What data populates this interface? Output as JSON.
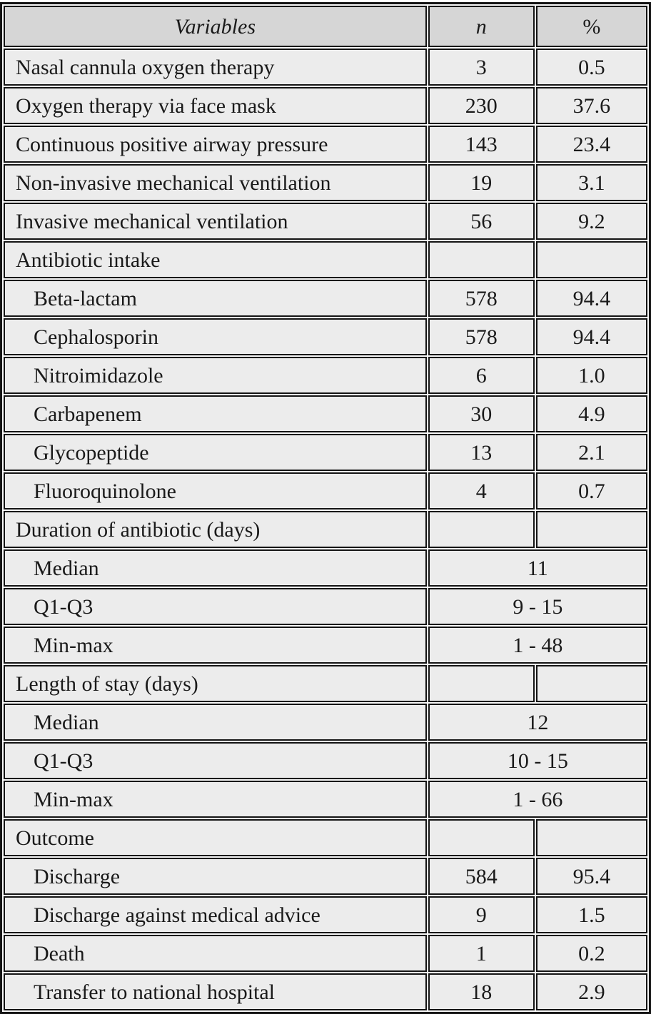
{
  "table": {
    "columns": {
      "variables": "Variables",
      "n": "n",
      "pct": "%"
    },
    "colors": {
      "header_bg": "#d6d6d6",
      "cell_bg": "#ececec",
      "border": "#141414",
      "text": "#1a1a1a"
    },
    "rows": [
      {
        "type": "data",
        "indent": false,
        "label": "Nasal cannula oxygen therapy",
        "n": "3",
        "pct": "0.5"
      },
      {
        "type": "data",
        "indent": false,
        "label": "Oxygen therapy via face mask",
        "n": "230",
        "pct": "37.6"
      },
      {
        "type": "data",
        "indent": false,
        "label": "Continuous positive airway pressure",
        "n": "143",
        "pct": "23.4"
      },
      {
        "type": "data",
        "indent": false,
        "label": "Non-invasive mechanical ventilation",
        "n": "19",
        "pct": "3.1"
      },
      {
        "type": "data",
        "indent": false,
        "label": "Invasive mechanical ventilation",
        "n": "56",
        "pct": "9.2"
      },
      {
        "type": "group",
        "indent": false,
        "label": "Antibiotic intake",
        "n": "",
        "pct": ""
      },
      {
        "type": "data",
        "indent": true,
        "label": "Beta-lactam",
        "n": "578",
        "pct": "94.4"
      },
      {
        "type": "data",
        "indent": true,
        "label": "Cephalosporin",
        "n": "578",
        "pct": "94.4"
      },
      {
        "type": "data",
        "indent": true,
        "label": "Nitroimidazole",
        "n": "6",
        "pct": "1.0"
      },
      {
        "type": "data",
        "indent": true,
        "label": "Carbapenem",
        "n": "30",
        "pct": "4.9"
      },
      {
        "type": "data",
        "indent": true,
        "label": "Glycopeptide",
        "n": "13",
        "pct": "2.1"
      },
      {
        "type": "data",
        "indent": true,
        "label": "Fluoroquinolone",
        "n": "4",
        "pct": "0.7"
      },
      {
        "type": "group",
        "indent": false,
        "label": "Duration of antibiotic (days)",
        "n": "",
        "pct": ""
      },
      {
        "type": "span",
        "indent": true,
        "label": "Median",
        "value": "11"
      },
      {
        "type": "span",
        "indent": true,
        "label": "Q1-Q3",
        "value": "9 - 15"
      },
      {
        "type": "span",
        "indent": true,
        "label": "Min-max",
        "value": "1 - 48"
      },
      {
        "type": "group",
        "indent": false,
        "label": "Length of stay (days)",
        "n": "",
        "pct": ""
      },
      {
        "type": "span",
        "indent": true,
        "label": "Median",
        "value": "12"
      },
      {
        "type": "span",
        "indent": true,
        "label": "Q1-Q3",
        "value": "10 - 15"
      },
      {
        "type": "span",
        "indent": true,
        "label": "Min-max",
        "value": "1 - 66"
      },
      {
        "type": "group",
        "indent": false,
        "label": "Outcome",
        "n": "",
        "pct": ""
      },
      {
        "type": "data",
        "indent": true,
        "label": "Discharge",
        "n": "584",
        "pct": "95.4"
      },
      {
        "type": "data",
        "indent": true,
        "label": "Discharge against medical advice",
        "n": "9",
        "pct": "1.5"
      },
      {
        "type": "data",
        "indent": true,
        "label": "Death",
        "n": "1",
        "pct": "0.2"
      },
      {
        "type": "data",
        "indent": true,
        "label": "Transfer to national hospital",
        "n": "18",
        "pct": "2.9"
      }
    ]
  }
}
